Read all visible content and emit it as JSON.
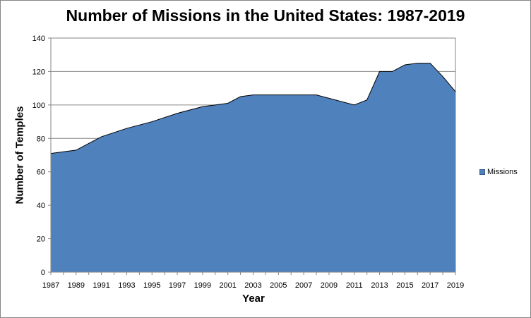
{
  "chart_data": {
    "type": "area",
    "title": "Number of Missions in the United States: 1987-2019",
    "xlabel": "Year",
    "ylabel": "Number of Temples",
    "ylim": [
      0,
      140
    ],
    "xlim": [
      1987,
      2019
    ],
    "yticks": [
      0,
      20,
      40,
      60,
      80,
      100,
      120,
      140
    ],
    "xticks": [
      1987,
      1989,
      1991,
      1993,
      1995,
      1997,
      1999,
      2001,
      2003,
      2005,
      2007,
      2009,
      2011,
      2013,
      2015,
      2017,
      2019
    ],
    "grid": "horizontal",
    "legend_position": "right",
    "colors": {
      "fill": "#4f81bd",
      "outline": "#000000",
      "grid": "#868686"
    },
    "series": [
      {
        "name": "Missions",
        "x": [
          1987,
          1989,
          1991,
          1993,
          1995,
          1997,
          1999,
          2001,
          2002,
          2003,
          2005,
          2007,
          2008,
          2011,
          2012,
          2013,
          2014,
          2015,
          2016,
          2017,
          2018,
          2019
        ],
        "values": [
          71,
          73,
          81,
          86,
          90,
          95,
          99,
          101,
          105,
          106,
          106,
          106,
          106,
          100,
          103,
          120,
          120,
          124,
          125,
          125,
          117,
          108
        ]
      }
    ]
  }
}
